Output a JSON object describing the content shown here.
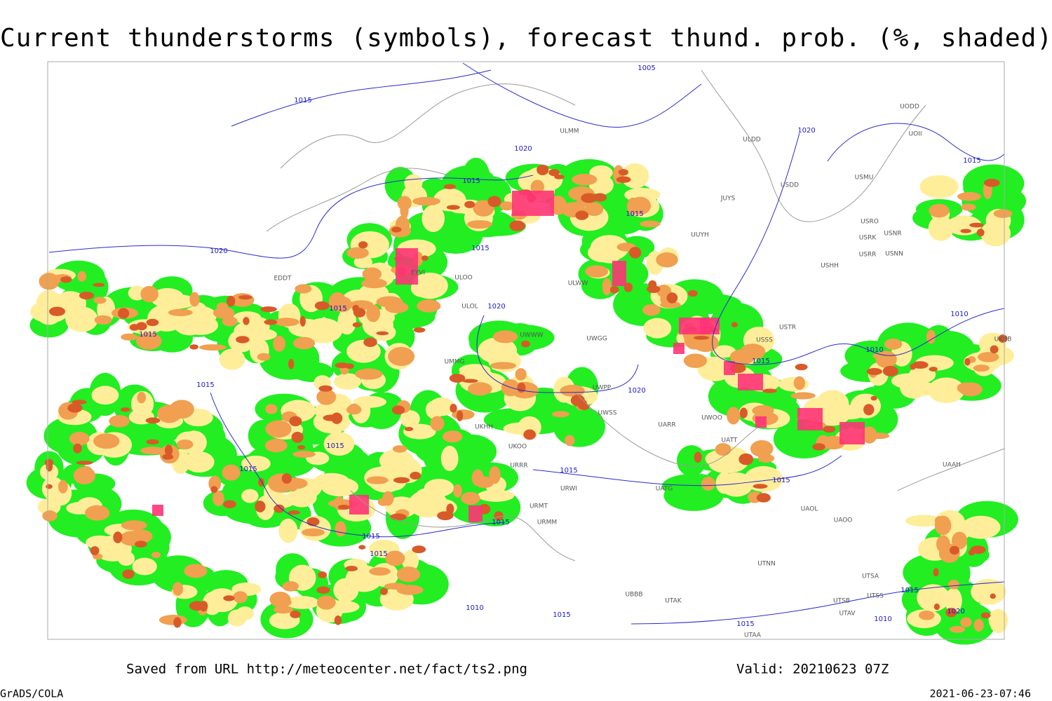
{
  "title": "Current thunderstorms (symbols), forecast thund. prob. (%, shaded)",
  "footer": {
    "saved": "Saved from URL http://meteocenter.net/fact/ts2.png",
    "valid": "Valid: 20210623 07Z",
    "software": "GrADS/COLA",
    "timestamp": "2021-06-23-07:46"
  },
  "isobar_labels": [
    "1005",
    "1015",
    "1020",
    "1015",
    "1015",
    "1015",
    "1020",
    "1015",
    "1020",
    "1015",
    "1015",
    "1020",
    "1015",
    "1010",
    "1020",
    "1015",
    "1010",
    "1015",
    "1015",
    "1015",
    "1015",
    "1015",
    "1015",
    "1015",
    "1010",
    "1015",
    "1015",
    "1010",
    "1015",
    "1020"
  ],
  "station_labels": [
    "ULMM",
    "ULDD",
    "UODD",
    "UOII",
    "USMU",
    "USDD",
    "JUYS",
    "USRO",
    "USRK",
    "USNR",
    "USRR",
    "USNN",
    "USHH",
    "UUYH",
    "ULWW",
    "ULOL",
    "EDDT",
    "EYVI",
    "ULOO",
    "UMMG",
    "UWWW",
    "UWGG",
    "UWPP",
    "UWSS",
    "UARR",
    "UWOO",
    "UATT",
    "USSS",
    "USTR",
    "UKHH",
    "UKOO",
    "URRR",
    "URWI",
    "UATG",
    "URMT",
    "URMM",
    "UAOL",
    "UAOO",
    "UAAH",
    "UTNN",
    "UTAK",
    "UBBB",
    "UTSA",
    "UTSB",
    "UTSS",
    "UTAV",
    "UTAA",
    "UKBB"
  ]
}
